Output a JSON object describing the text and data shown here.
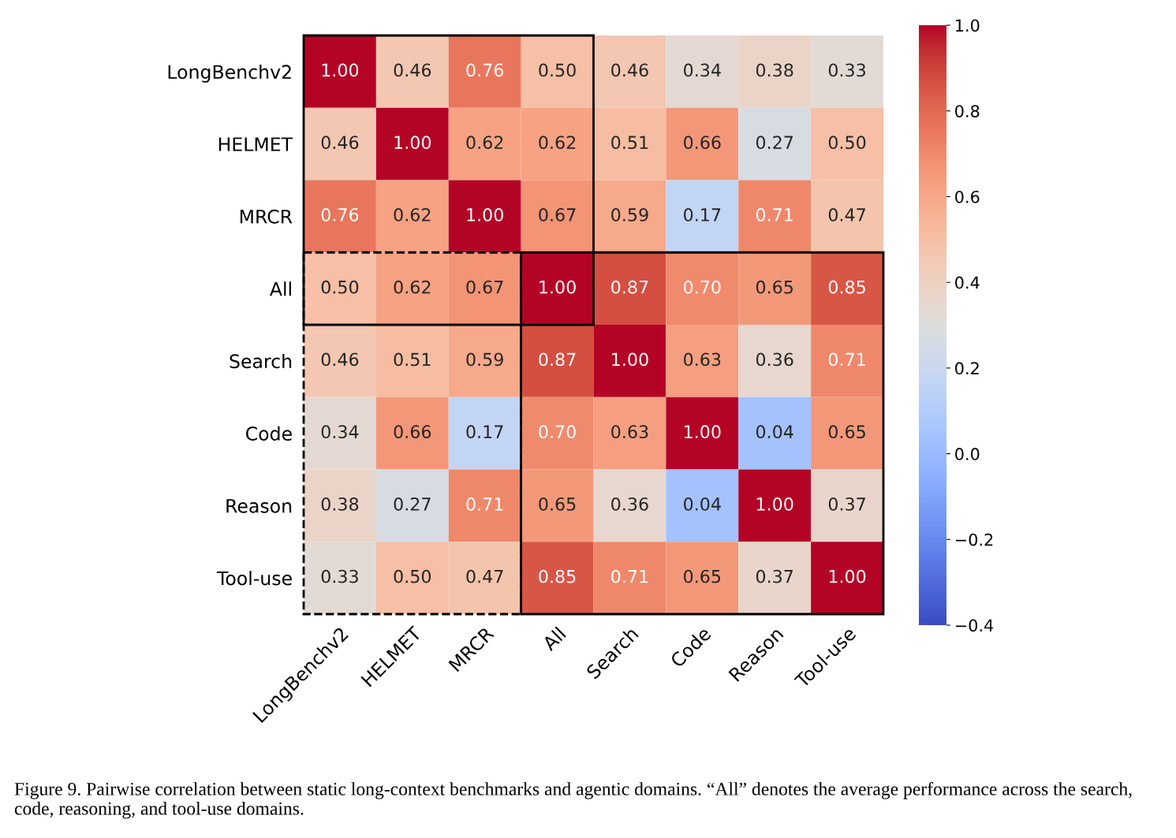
{
  "chart_data": {
    "type": "heatmap",
    "categories": [
      "LongBenchv2",
      "HELMET",
      "MRCR",
      "All",
      "Search",
      "Code",
      "Reason",
      "Tool-use"
    ],
    "y_categories": [
      "LongBenchv2",
      "HELMET",
      "MRCR",
      "All",
      "Search",
      "Code",
      "Reason",
      "Tool-use"
    ],
    "cells": [
      [
        1.0,
        0.46,
        0.76,
        0.5,
        0.46,
        0.34,
        0.38,
        0.33
      ],
      [
        0.46,
        1.0,
        0.62,
        0.62,
        0.51,
        0.66,
        0.27,
        0.5
      ],
      [
        0.76,
        0.62,
        1.0,
        0.67,
        0.59,
        0.17,
        0.71,
        0.47
      ],
      [
        0.5,
        0.62,
        0.67,
        1.0,
        0.87,
        0.7,
        0.65,
        0.85
      ],
      [
        0.46,
        0.51,
        0.59,
        0.87,
        1.0,
        0.63,
        0.36,
        0.71
      ],
      [
        0.34,
        0.66,
        0.17,
        0.7,
        0.63,
        1.0,
        0.04,
        0.65
      ],
      [
        0.38,
        0.27,
        0.71,
        0.65,
        0.36,
        0.04,
        1.0,
        0.37
      ],
      [
        0.33,
        0.5,
        0.47,
        0.85,
        0.71,
        0.65,
        0.37,
        1.0
      ]
    ],
    "cell_labels": [
      [
        "1.00",
        "0.46",
        "0.76",
        "0.50",
        "0.46",
        "0.34",
        "0.38",
        "0.33"
      ],
      [
        "0.46",
        "1.00",
        "0.62",
        "0.62",
        "0.51",
        "0.66",
        "0.27",
        "0.50"
      ],
      [
        "0.76",
        "0.62",
        "1.00",
        "0.67",
        "0.59",
        "0.17",
        "0.71",
        "0.47"
      ],
      [
        "0.50",
        "0.62",
        "0.67",
        "1.00",
        "0.87",
        "0.70",
        "0.65",
        "0.85"
      ],
      [
        "0.46",
        "0.51",
        "0.59",
        "0.87",
        "1.00",
        "0.63",
        "0.36",
        "0.71"
      ],
      [
        "0.34",
        "0.66",
        "0.17",
        "0.70",
        "0.63",
        "1.00",
        "0.04",
        "0.65"
      ],
      [
        "0.38",
        "0.27",
        "0.71",
        "0.65",
        "0.36",
        "0.04",
        "1.00",
        "0.37"
      ],
      [
        "0.33",
        "0.50",
        "0.47",
        "0.85",
        "0.71",
        "0.65",
        "0.37",
        "1.00"
      ]
    ],
    "clim": [
      -0.4,
      1.0
    ],
    "cticks": [
      {
        "value": -0.4,
        "label": "−0.4"
      },
      {
        "value": -0.2,
        "label": "−0.2"
      },
      {
        "value": 0.0,
        "label": "0.0"
      },
      {
        "value": 0.2,
        "label": "0.2"
      },
      {
        "value": 0.4,
        "label": "0.4"
      },
      {
        "value": 0.6,
        "label": "0.6"
      },
      {
        "value": 0.8,
        "label": "0.8"
      },
      {
        "value": 1.0,
        "label": "1.0"
      }
    ],
    "annotations": [
      "Figure 9. Pairwise correlation between static long-context benchmarks and agentic domains. “All” denotes the average performance across the search, code, reasoning, and tool-use domains."
    ]
  }
}
